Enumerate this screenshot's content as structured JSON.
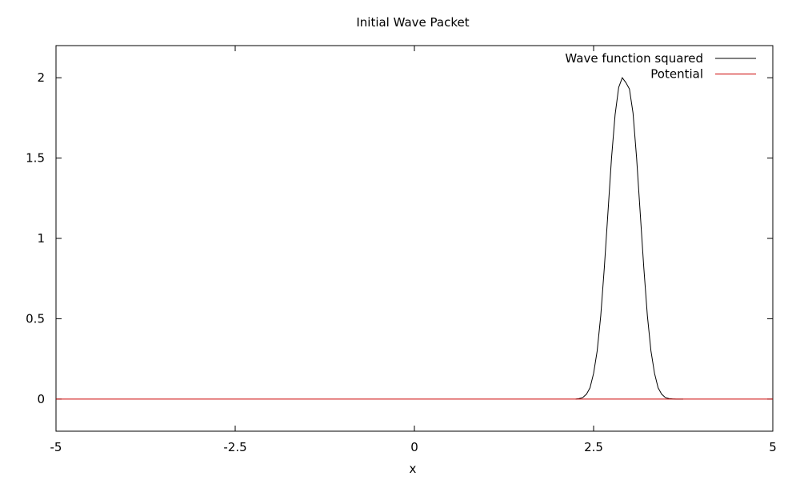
{
  "chart_data": {
    "type": "line",
    "title": "Initial Wave Packet",
    "xlabel": "x",
    "ylabel": "",
    "xlim": [
      -5,
      5
    ],
    "ylim": [
      -0.2,
      2.2
    ],
    "grid": false,
    "legend_position": "top-right",
    "x_ticks": [
      {
        "value": -5,
        "label": "-5"
      },
      {
        "value": -2.5,
        "label": "-2.5"
      },
      {
        "value": 0,
        "label": "0"
      },
      {
        "value": 2.5,
        "label": "2.5"
      },
      {
        "value": 5,
        "label": "5"
      }
    ],
    "y_ticks": [
      {
        "value": 0,
        "label": "0"
      },
      {
        "value": 0.5,
        "label": "0.5"
      },
      {
        "value": 1,
        "label": "1"
      },
      {
        "value": 1.5,
        "label": "1.5"
      },
      {
        "value": 2,
        "label": "2"
      }
    ],
    "series": [
      {
        "name": "Wave function squared",
        "color": "#000000",
        "x": [
          2.25,
          2.3,
          2.35,
          2.4,
          2.45,
          2.5,
          2.55,
          2.6,
          2.65,
          2.7,
          2.75,
          2.8,
          2.85,
          2.9,
          2.95,
          3.0,
          3.05,
          3.1,
          3.15,
          3.2,
          3.25,
          3.3,
          3.35,
          3.4,
          3.45,
          3.5,
          3.55,
          3.6,
          3.65,
          3.7,
          3.75
        ],
        "y": [
          0.0,
          0.003,
          0.01,
          0.03,
          0.07,
          0.16,
          0.3,
          0.52,
          0.82,
          1.16,
          1.5,
          1.77,
          1.94,
          2.0,
          1.97,
          1.93,
          1.78,
          1.5,
          1.16,
          0.82,
          0.52,
          0.3,
          0.16,
          0.07,
          0.03,
          0.01,
          0.003,
          0.001,
          0.0,
          0.0,
          0.0
        ]
      },
      {
        "name": "Potential",
        "color": "#cc0000",
        "x": [
          -5,
          5
        ],
        "y": [
          0,
          0
        ]
      }
    ]
  }
}
